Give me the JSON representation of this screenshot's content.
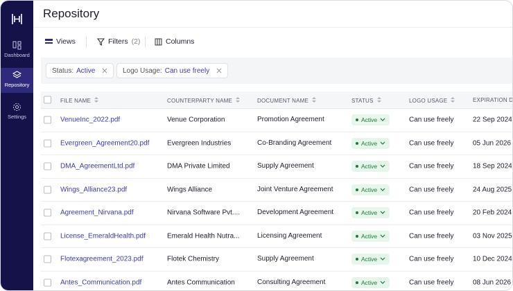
{
  "sidebar": {
    "items": [
      {
        "label": "Dashboard"
      },
      {
        "label": "Repository"
      },
      {
        "label": "Settings"
      }
    ]
  },
  "header": {
    "title": "Repository"
  },
  "toolbar": {
    "views": "Views",
    "filters": "Filters",
    "filter_count": "(2)",
    "columns": "Columns"
  },
  "filters": [
    {
      "label": "Status:",
      "value": "Active"
    },
    {
      "label": "Logo Usage:",
      "value": "Can use freely"
    }
  ],
  "table": {
    "columns": [
      "FILE NAME",
      "COUNTERPARTY NAME",
      "DOCUMENT NAME",
      "STATUS",
      "LOGO USAGE",
      "EXPIRATION DATE"
    ],
    "rows": [
      [
        "VenueInc_2022.pdf",
        "Venue Corporation",
        "Promotion Agreement",
        "Active",
        "Can use freely",
        "22 Sep 2024"
      ],
      [
        "Evergreen_Agreement20.pdf",
        "Evergreen Industries",
        "Co-Branding Agreement",
        "Active",
        "Can use freely",
        "05 Jun 2026"
      ],
      [
        "DMA_AgreementLtd.pdf",
        "DMA Private Limited",
        "Supply Agreement",
        "Active",
        "Can use freely",
        "18 Sep 2024"
      ],
      [
        "Wings_Alliance23.pdf",
        "Wings Alliance",
        "Joint Venture Agreement",
        "Active",
        "Can use freely",
        "24 Aug 2025"
      ],
      [
        "Agreement_Nirvana.pdf",
        "Nirvana Software Pvt....",
        "Development Agreement",
        "Active",
        "Can use freely",
        "20 Feb 2024"
      ],
      [
        "License_EmeraldHealth.pdf",
        "Emerald Health Nutra...",
        "Licensing Agreement",
        "Active",
        "Can use freely",
        "03 Nov 2025"
      ],
      [
        "Flotexagreement_2023.pdf",
        "Flotek Chemistry",
        "Supply Agreement",
        "Active",
        "Can use freely",
        "10 Dec 2024"
      ],
      [
        "Antes_Communication.pdf",
        "Antes Communication",
        "Consulting Agreement",
        "Active",
        "Can use freely",
        "08 Jun 2026"
      ]
    ]
  }
}
